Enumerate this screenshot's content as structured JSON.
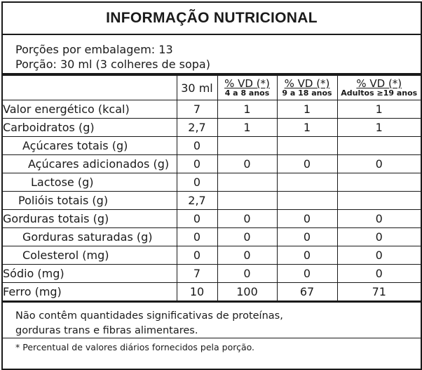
{
  "title": "INFORMAÇÃO NUTRICIONAL",
  "portions": {
    "per_package": "Porções por embalagem: 13",
    "serving": "Porção: 30 ml (3 colheres de sopa)"
  },
  "table": {
    "headers": {
      "portion": "30 ml",
      "vd1_main": "% VD (*)",
      "vd1_sub": "4 a 8 anos",
      "vd2_main": "% VD (*)",
      "vd2_sub": "9 a 18 anos",
      "vd3_main": "% VD (*)",
      "vd3_sub": "Adultos ≥19 anos"
    },
    "rows": [
      {
        "name": "Valor energético (kcal)",
        "portion": "7",
        "vd1": "1",
        "vd2": "1",
        "vd3": "1"
      },
      {
        "name": "Carboidratos (g)",
        "portion": "2,7",
        "vd1": "1",
        "vd2": "1",
        "vd3": "1"
      },
      {
        "name": "Açúcares totais (g)",
        "portion": "0",
        "vd1": "",
        "vd2": "",
        "vd3": ""
      },
      {
        "name": "Açúcares adicionados (g)",
        "portion": "0",
        "vd1": "0",
        "vd2": "0",
        "vd3": "0"
      },
      {
        "name": "Lactose (g)",
        "portion": "0",
        "vd1": "",
        "vd2": "",
        "vd3": ""
      },
      {
        "name": "Polióis totais (g)",
        "portion": "2,7",
        "vd1": "",
        "vd2": "",
        "vd3": ""
      },
      {
        "name": "Gorduras totais (g)",
        "portion": "0",
        "vd1": "0",
        "vd2": "0",
        "vd3": "0"
      },
      {
        "name": "Gorduras saturadas (g)",
        "portion": "0",
        "vd1": "0",
        "vd2": "0",
        "vd3": "0"
      },
      {
        "name": "Colesterol (mg)",
        "portion": "0",
        "vd1": "0",
        "vd2": "0",
        "vd3": "0"
      },
      {
        "name": "Sódio (mg)",
        "portion": "7",
        "vd1": "0",
        "vd2": "0",
        "vd3": "0"
      },
      {
        "name": "Ferro (mg)",
        "portion": "10",
        "vd1": "100",
        "vd2": "67",
        "vd3": "71"
      }
    ]
  },
  "note": {
    "line1": "Não contêm quantidades significativas de proteínas,",
    "line2": "gorduras trans e fibras alimentares."
  },
  "footnote": "* Percentual de valores diários fornecidos pela porção."
}
